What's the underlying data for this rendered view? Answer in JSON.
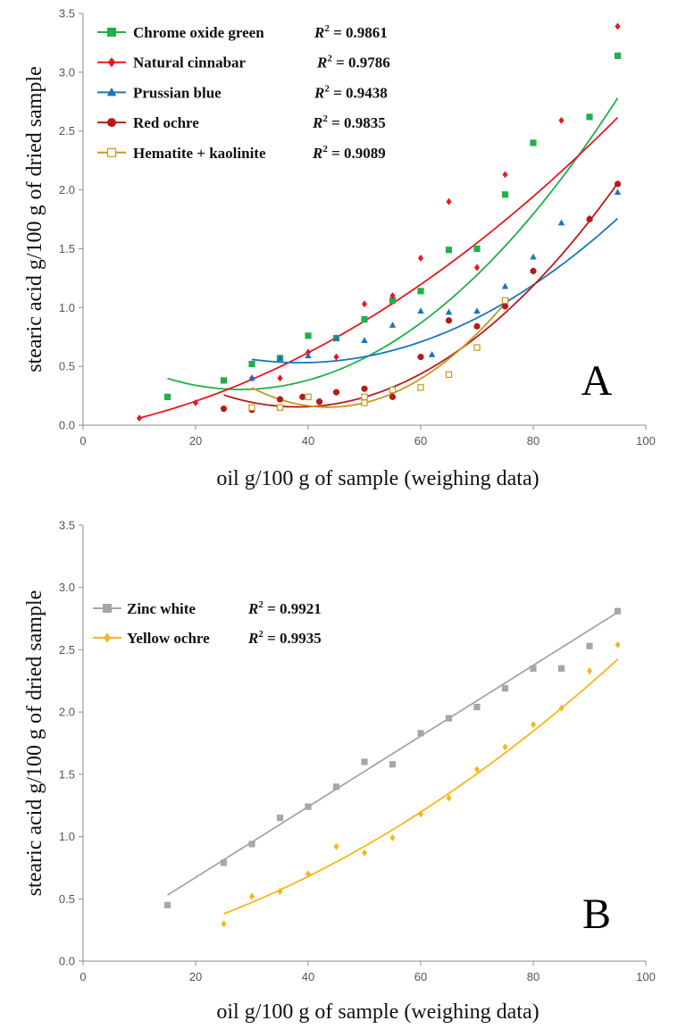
{
  "chart_data": [
    {
      "type": "scatter",
      "panel_label": "A",
      "xlabel": "oil g/100 g of sample (weighing data)",
      "ylabel": "stearic acid g/100 g of dried sample",
      "xlim": [
        0,
        100
      ],
      "ylim": [
        0,
        3.5
      ],
      "x_ticks": [
        "0",
        "20",
        "40",
        "60",
        "80",
        "100"
      ],
      "y_ticks": [
        "0.0",
        "0.5",
        "1.0",
        "1.5",
        "2.0",
        "2.5",
        "3.0",
        "3.5"
      ],
      "grid": false,
      "legend_position": "top-left",
      "series": [
        {
          "name": "Chrome oxide green",
          "r2_label": "R",
          "r2_value": "= 0.9861",
          "color": "#1db14b",
          "marker": "square",
          "points": [
            [
              15,
              0.24
            ],
            [
              25,
              0.38
            ],
            [
              30,
              0.52
            ],
            [
              35,
              0.57
            ],
            [
              40,
              0.76
            ],
            [
              45,
              0.74
            ],
            [
              50,
              0.9
            ],
            [
              55,
              1.06
            ],
            [
              60,
              1.14
            ],
            [
              65,
              1.49
            ],
            [
              70,
              1.5
            ],
            [
              75,
              1.96
            ],
            [
              80,
              2.4
            ],
            [
              90,
              2.62
            ],
            [
              95,
              3.14
            ]
          ],
          "trend": [
            0.000552,
            -0.03093,
            0.7369
          ],
          "trend_range": [
            15,
            95
          ]
        },
        {
          "name": "Natural cinnabar",
          "r2_label": "R",
          "r2_value": "= 0.9786",
          "color": "#e8171f",
          "marker": "diamond",
          "points": [
            [
              10,
              0.06
            ],
            [
              20,
              0.19
            ],
            [
              30,
              0.4
            ],
            [
              35,
              0.4
            ],
            [
              40,
              0.62
            ],
            [
              45,
              0.58
            ],
            [
              50,
              1.03
            ],
            [
              55,
              1.1
            ],
            [
              60,
              1.42
            ],
            [
              65,
              1.9
            ],
            [
              70,
              1.34
            ],
            [
              75,
              2.13
            ],
            [
              85,
              2.59
            ],
            [
              95,
              3.39
            ]
          ],
          "trend": [
            0.00021,
            0.008,
            -0.04
          ],
          "trend_range": [
            10,
            95
          ]
        },
        {
          "name": "Prussian blue",
          "r2_label": "R",
          "r2_value": "= 0.9438",
          "color": "#1b75bb",
          "marker": "triangle",
          "points": [
            [
              30,
              0.4
            ],
            [
              35,
              0.57
            ],
            [
              40,
              0.59
            ],
            [
              45,
              0.74
            ],
            [
              50,
              0.72
            ],
            [
              55,
              0.85
            ],
            [
              60,
              0.97
            ],
            [
              62,
              0.6
            ],
            [
              65,
              0.96
            ],
            [
              70,
              0.97
            ],
            [
              75,
              1.18
            ],
            [
              80,
              1.43
            ],
            [
              85,
              1.72
            ],
            [
              90,
              1.76
            ],
            [
              95,
              1.98
            ]
          ],
          "trend": [
            0.000385,
            -0.0297,
            1.104
          ],
          "trend_range": [
            30,
            95
          ]
        },
        {
          "name": "Red ochre",
          "r2_label": "R",
          "r2_value": "= 0.9835",
          "color": "#b81a1a",
          "marker": "circle",
          "points": [
            [
              25,
              0.14
            ],
            [
              30,
              0.13
            ],
            [
              35,
              0.22
            ],
            [
              39,
              0.24
            ],
            [
              42,
              0.2
            ],
            [
              45,
              0.28
            ],
            [
              50,
              0.31
            ],
            [
              55,
              0.24
            ],
            [
              60,
              0.58
            ],
            [
              65,
              0.89
            ],
            [
              70,
              0.84
            ],
            [
              75,
              1.01
            ],
            [
              80,
              1.31
            ],
            [
              90,
              1.75
            ],
            [
              95,
              2.05
            ]
          ],
          "trend": [
            0.000588,
            -0.04485,
            1.0104
          ],
          "trend_range": [
            25,
            95
          ]
        },
        {
          "name": "Hematite + kaolinite",
          "r2_label": "R",
          "r2_value": "= 0.9089",
          "color": "#c4991e",
          "marker": "square-open",
          "points": [
            [
              30,
              0.15
            ],
            [
              35,
              0.15
            ],
            [
              40,
              0.24
            ],
            [
              50,
              0.19
            ],
            [
              50,
              0.24
            ],
            [
              55,
              0.3
            ],
            [
              60,
              0.32
            ],
            [
              65,
              0.43
            ],
            [
              70,
              0.66
            ],
            [
              75,
              1.06
            ]
          ],
          "trend": [
            0.000896,
            -0.0781,
            1.855
          ],
          "trend_range": [
            30,
            75
          ]
        }
      ]
    },
    {
      "type": "scatter",
      "panel_label": "B",
      "xlabel": "oil g/100 g of sample (weighing data)",
      "ylabel": "stearic acid g/100 g of dried sample",
      "xlim": [
        0,
        100
      ],
      "ylim": [
        0,
        3.5
      ],
      "x_ticks": [
        "0",
        "20",
        "40",
        "60",
        "80",
        "100"
      ],
      "y_ticks": [
        "0.0",
        "0.5",
        "1.0",
        "1.5",
        "2.0",
        "2.5",
        "3.0",
        "3.5"
      ],
      "grid": false,
      "legend_position": "top-left",
      "series": [
        {
          "name": "Zinc white",
          "r2_label": "R",
          "r2_value": "= 0.9921",
          "color": "#a6a6a6",
          "marker": "square",
          "points": [
            [
              15,
              0.45
            ],
            [
              25,
              0.79
            ],
            [
              30,
              0.94
            ],
            [
              35,
              1.15
            ],
            [
              40,
              1.24
            ],
            [
              45,
              1.4
            ],
            [
              50,
              1.6
            ],
            [
              55,
              1.58
            ],
            [
              60,
              1.83
            ],
            [
              65,
              1.95
            ],
            [
              70,
              2.04
            ],
            [
              75,
              2.19
            ],
            [
              80,
              2.35
            ],
            [
              85,
              2.35
            ],
            [
              90,
              2.53
            ],
            [
              95,
              2.81
            ]
          ],
          "trend": [
            0.0,
            0.02838,
            0.1043
          ],
          "trend_range": [
            15,
            95
          ]
        },
        {
          "name": "Yellow ochre",
          "r2_label": "R",
          "r2_value": "= 0.9935",
          "color": "#f7b718",
          "marker": "diamond",
          "points": [
            [
              25,
              0.3
            ],
            [
              30,
              0.52
            ],
            [
              35,
              0.56
            ],
            [
              40,
              0.7
            ],
            [
              45,
              0.92
            ],
            [
              50,
              0.87
            ],
            [
              55,
              0.99
            ],
            [
              60,
              1.18
            ],
            [
              65,
              1.31
            ],
            [
              70,
              1.54
            ],
            [
              75,
              1.72
            ],
            [
              80,
              1.9
            ],
            [
              85,
              2.03
            ],
            [
              90,
              2.33
            ],
            [
              95,
              2.54
            ]
          ],
          "trend": [
            0.000167,
            0.00914,
            0.0471
          ],
          "trend_range": [
            25,
            95
          ]
        }
      ]
    }
  ]
}
